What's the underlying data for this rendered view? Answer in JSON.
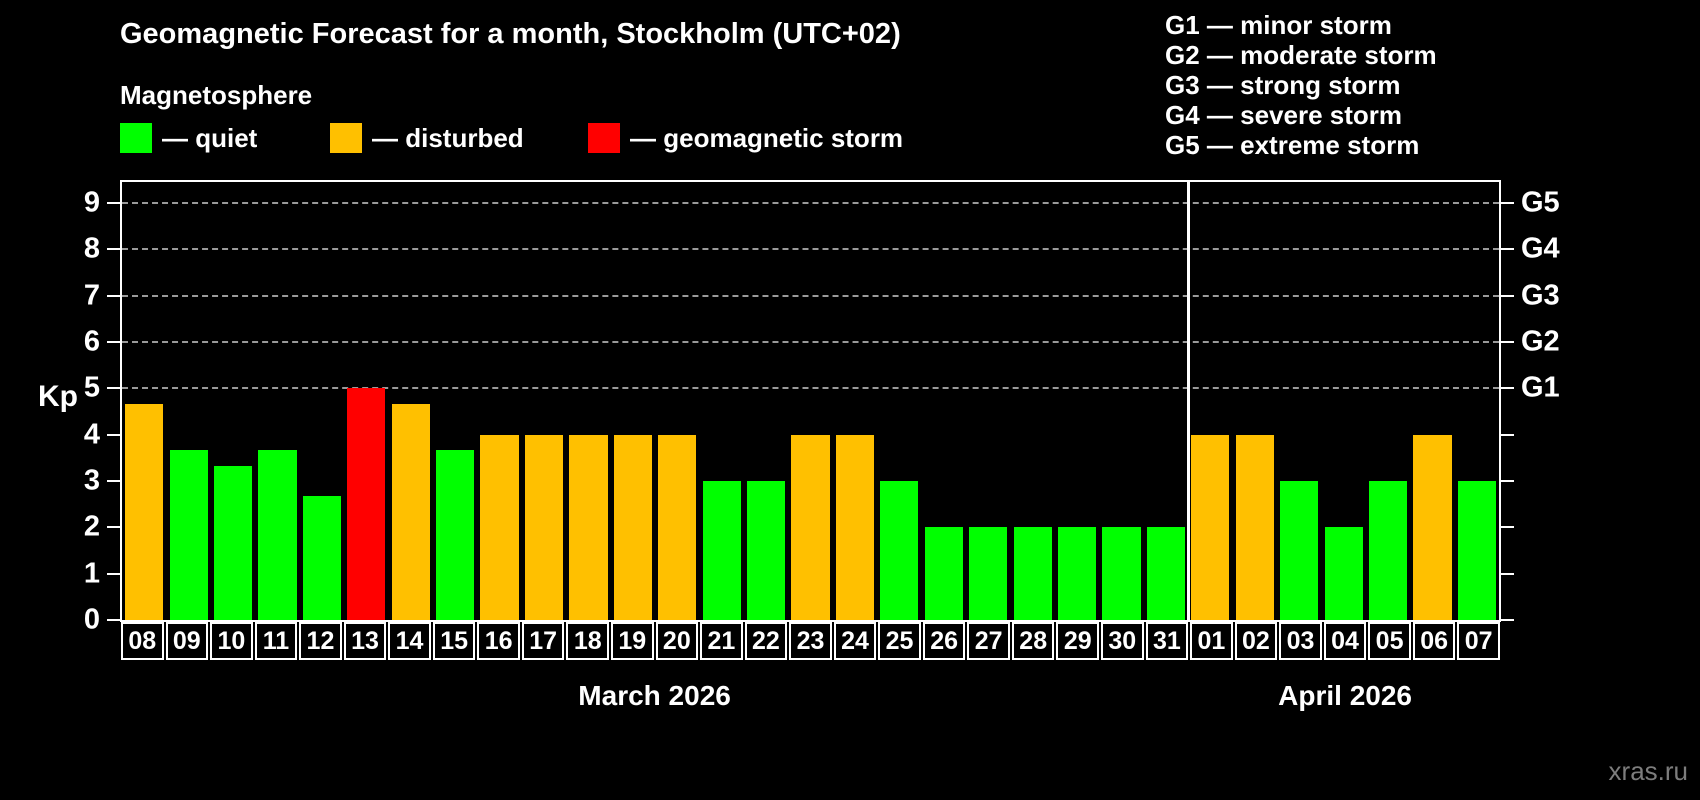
{
  "title": "Geomagnetic Forecast for a month, Stockholm (UTC+02)",
  "subtitle": "Magnetosphere",
  "legend": {
    "quiet": "— quiet",
    "disturbed": "— disturbed",
    "storm": "— geomagnetic storm"
  },
  "g_legend": [
    "G1 — minor storm",
    "G2 — moderate storm",
    "G3 — strong storm",
    "G4 — severe storm",
    "G5 — extreme storm"
  ],
  "axis": {
    "kp_label": "Kp",
    "y_ticks": [
      0,
      1,
      2,
      3,
      4,
      5,
      6,
      7,
      8,
      9
    ],
    "g_ticks": [
      {
        "kp": 5,
        "label": "G1"
      },
      {
        "kp": 6,
        "label": "G2"
      },
      {
        "kp": 7,
        "label": "G3"
      },
      {
        "kp": 8,
        "label": "G4"
      },
      {
        "kp": 9,
        "label": "G5"
      }
    ]
  },
  "colors": {
    "quiet": "#00ff00",
    "disturbed": "#ffc000",
    "storm": "#ff0000"
  },
  "watermark": "xras.ru",
  "chart_data": {
    "type": "bar",
    "title": "Geomagnetic Forecast for a month, Stockholm (UTC+02)",
    "xlabel": "",
    "ylabel": "Kp",
    "ylim": [
      0,
      9.45
    ],
    "grid": "dashed horizontal at Kp 5-9 (G1-G5)",
    "categories": [
      "08",
      "09",
      "10",
      "11",
      "12",
      "13",
      "14",
      "15",
      "16",
      "17",
      "18",
      "19",
      "20",
      "21",
      "22",
      "23",
      "24",
      "25",
      "26",
      "27",
      "28",
      "29",
      "30",
      "31",
      "01",
      "02",
      "03",
      "04",
      "05",
      "06",
      "07"
    ],
    "values": [
      4.67,
      3.67,
      3.33,
      3.67,
      2.67,
      5,
      4.67,
      3.67,
      4,
      4,
      4,
      4,
      4,
      3,
      3,
      4,
      4,
      3,
      2,
      2,
      2,
      2,
      2,
      2,
      4,
      4,
      3,
      2,
      3,
      4,
      3
    ],
    "status": [
      "disturbed",
      "quiet",
      "quiet",
      "quiet",
      "quiet",
      "storm",
      "disturbed",
      "quiet",
      "disturbed",
      "disturbed",
      "disturbed",
      "disturbed",
      "disturbed",
      "quiet",
      "quiet",
      "disturbed",
      "disturbed",
      "quiet",
      "quiet",
      "quiet",
      "quiet",
      "quiet",
      "quiet",
      "quiet",
      "disturbed",
      "disturbed",
      "quiet",
      "quiet",
      "quiet",
      "disturbed",
      "quiet"
    ],
    "months": [
      {
        "label": "March 2026",
        "days": 24
      },
      {
        "label": "April 2026",
        "days": 7
      }
    ]
  }
}
